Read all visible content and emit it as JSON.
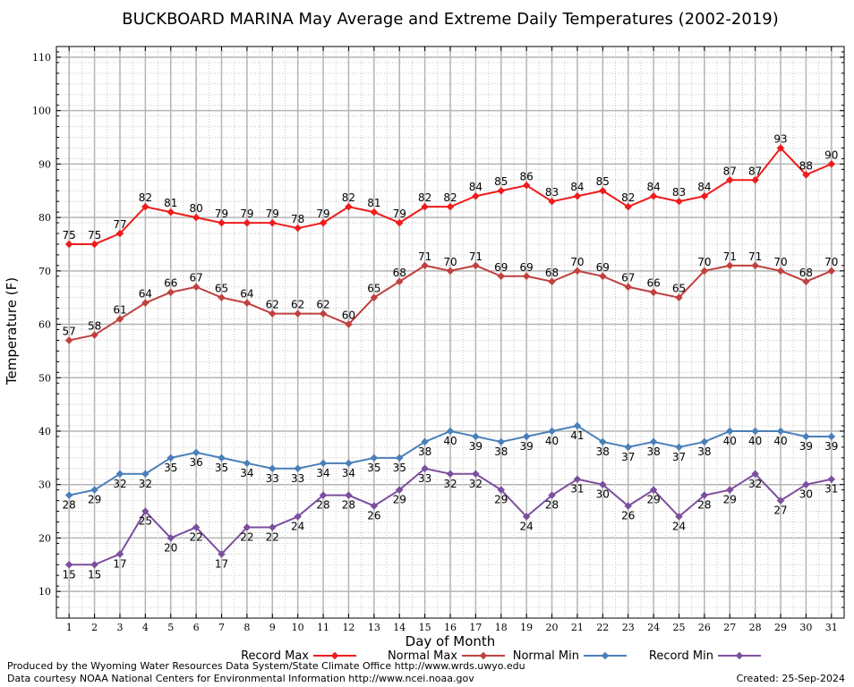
{
  "chart_data": {
    "type": "line",
    "title": "BUCKBOARD MARINA May Average and Extreme Daily Temperatures (2002-2019)",
    "xlabel": "Day of Month",
    "ylabel": "Temperature (F)",
    "xlim": [
      0.5,
      31.5
    ],
    "ylim": [
      5,
      112
    ],
    "yticks": [
      10,
      20,
      30,
      40,
      50,
      60,
      70,
      80,
      90,
      100,
      110
    ],
    "x": [
      1,
      2,
      3,
      4,
      5,
      6,
      7,
      8,
      9,
      10,
      11,
      12,
      13,
      14,
      15,
      16,
      17,
      18,
      19,
      20,
      21,
      22,
      23,
      24,
      25,
      26,
      27,
      28,
      29,
      30,
      31
    ],
    "grid": true,
    "legend_position": "bottom",
    "series": [
      {
        "name": "Record Max",
        "color": "#ee1c1c",
        "values": [
          75,
          75,
          77,
          82,
          81,
          80,
          79,
          79,
          79,
          78,
          79,
          82,
          81,
          79,
          82,
          82,
          84,
          85,
          86,
          83,
          84,
          85,
          82,
          84,
          83,
          84,
          87,
          87,
          93,
          88,
          90
        ]
      },
      {
        "name": "Normal Max",
        "color": "#c0413f",
        "values": [
          57,
          58,
          61,
          64,
          66,
          67,
          65,
          64,
          62,
          62,
          62,
          60,
          65,
          68,
          71,
          70,
          71,
          69,
          69,
          68,
          70,
          69,
          67,
          66,
          65,
          70,
          71,
          71,
          70,
          68,
          70
        ]
      },
      {
        "name": "Normal Min",
        "color": "#4a7fb8",
        "values": [
          28,
          29,
          32,
          32,
          35,
          36,
          35,
          34,
          33,
          33,
          34,
          34,
          35,
          35,
          38,
          40,
          39,
          38,
          39,
          40,
          41,
          38,
          37,
          38,
          37,
          38,
          40,
          40,
          40,
          39,
          39
        ]
      },
      {
        "name": "Record Min",
        "color": "#7b4f9d",
        "values": [
          15,
          15,
          17,
          25,
          20,
          22,
          17,
          22,
          22,
          24,
          28,
          28,
          26,
          29,
          33,
          32,
          32,
          29,
          24,
          28,
          31,
          30,
          26,
          29,
          24,
          28,
          29,
          32,
          27,
          30,
          31
        ]
      }
    ]
  },
  "footer": {
    "produced_by": "Produced by the Wyoming Water Resources Data System/State Climate Office http://www.wrds.uwyo.edu",
    "courtesy": "Data courtesy NOAA National Centers for Environmental Information http://www.ncei.noaa.gov",
    "created": "Created: 25-Sep-2024"
  }
}
